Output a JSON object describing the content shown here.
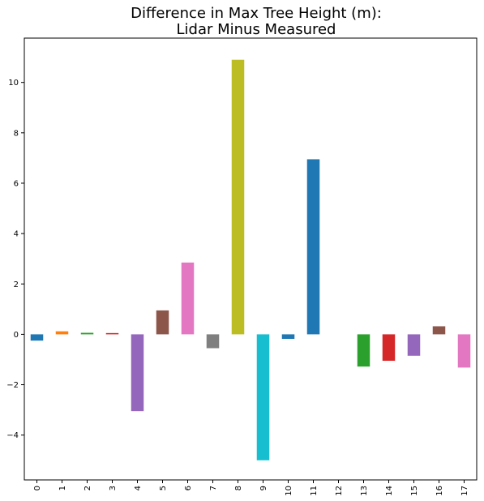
{
  "chart_data": {
    "type": "bar",
    "title_lines": [
      "Difference in Max Tree Height (m):",
      "Lidar Minus Measured"
    ],
    "xlabel": "",
    "ylabel": "",
    "categories": [
      "0",
      "1",
      "2",
      "3",
      "4",
      "5",
      "6",
      "7",
      "8",
      "9",
      "10",
      "11",
      "12",
      "13",
      "14",
      "15",
      "16",
      "17"
    ],
    "values": [
      -0.25,
      0.12,
      0.06,
      0.05,
      -3.05,
      0.95,
      2.85,
      -0.55,
      10.9,
      -5.0,
      -0.18,
      6.95,
      0.0,
      -1.28,
      -1.05,
      -0.85,
      0.32,
      -1.32
    ],
    "colors": [
      "#1f77b4",
      "#ff7f0e",
      "#2ca02c",
      "#d62728",
      "#9467bd",
      "#8c564b",
      "#e377c2",
      "#7f7f7f",
      "#bcbd22",
      "#17becf",
      "#1f77b4",
      "#1f77b4",
      "#ff7f0e",
      "#2ca02c",
      "#d62728",
      "#9467bd",
      "#8c564b",
      "#e377c2"
    ],
    "ylim": [
      -5.78,
      11.76
    ],
    "yticks": [
      -4,
      -2,
      0,
      2,
      4,
      6,
      8,
      10
    ],
    "ytick_labels": [
      "−4",
      "−2",
      "0",
      "2",
      "4",
      "6",
      "8",
      "10"
    ],
    "grid": false,
    "legend": "none"
  }
}
